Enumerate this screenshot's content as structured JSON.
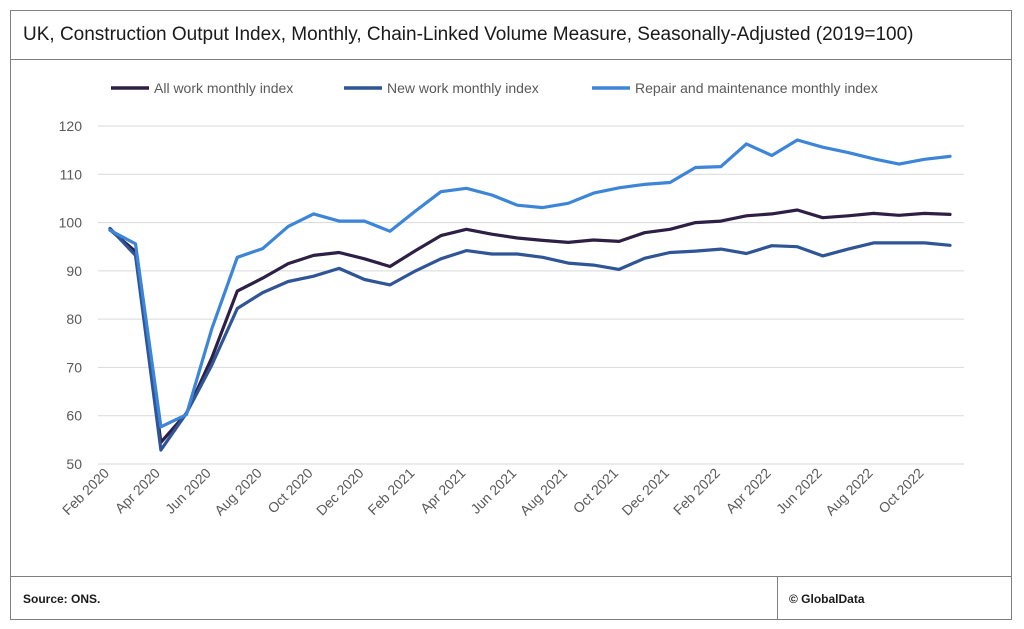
{
  "header": {
    "title": "UK, Construction Output Index, Monthly, Chain-Linked Volume Measure, Seasonally-Adjusted (2019=100)"
  },
  "footer": {
    "source": "Source: ONS.",
    "copyright": "© GlobalData"
  },
  "chart_data": {
    "type": "line",
    "title": "UK, Construction Output Index, Monthly, Chain-Linked Volume Measure, Seasonally-Adjusted (2019=100)",
    "xlabel": "",
    "ylabel": "",
    "ylim": [
      50,
      120
    ],
    "yticks": [
      50,
      60,
      70,
      80,
      90,
      100,
      110,
      120
    ],
    "grid": "horizontal",
    "legend_position": "top",
    "x": [
      "Feb 2020",
      "Mar 2020",
      "Apr 2020",
      "May 2020",
      "Jun 2020",
      "Jul 2020",
      "Aug 2020",
      "Sep 2020",
      "Oct 2020",
      "Nov 2020",
      "Dec 2020",
      "Jan 2021",
      "Feb 2021",
      "Mar 2021",
      "Apr 2021",
      "May 2021",
      "Jun 2021",
      "Jul 2021",
      "Aug 2021",
      "Sep 2021",
      "Oct 2021",
      "Nov 2021",
      "Dec 2021",
      "Jan 2022",
      "Feb 2022",
      "Mar 2022",
      "Apr 2022",
      "May 2022",
      "Jun 2022",
      "Jul 2022",
      "Aug 2022",
      "Sep 2022",
      "Oct 2022",
      "Nov 2022"
    ],
    "x_tick_labels": [
      "Feb 2020",
      "Apr 2020",
      "Jun 2020",
      "Aug 2020",
      "Oct 2020",
      "Dec 2020",
      "Feb 2021",
      "Apr 2021",
      "Jun 2021",
      "Aug 2021",
      "Oct 2021",
      "Dec 2021",
      "Feb 2022",
      "Apr 2022",
      "Jun 2022",
      "Aug 2022",
      "Oct 2022"
    ],
    "series": [
      {
        "name": "All work monthly index",
        "color": "#2e1f45",
        "values": [
          98.5,
          94.0,
          54.5,
          60.5,
          72.0,
          85.8,
          88.5,
          91.5,
          93.2,
          93.8,
          92.5,
          90.9,
          94.2,
          97.3,
          98.6,
          97.6,
          96.8,
          96.3,
          95.9,
          96.4,
          96.1,
          97.9,
          98.6,
          100.0,
          100.3,
          101.4,
          101.8,
          102.6,
          101.0,
          101.4,
          101.9,
          101.5,
          101.9,
          101.7
        ]
      },
      {
        "name": "New work monthly index",
        "color": "#2f5597",
        "values": [
          98.8,
          93.2,
          52.9,
          60.5,
          70.5,
          82.2,
          85.5,
          87.8,
          88.9,
          90.5,
          88.2,
          87.1,
          90.0,
          92.5,
          94.2,
          93.5,
          93.5,
          92.8,
          91.6,
          91.2,
          90.3,
          92.6,
          93.8,
          94.1,
          94.5,
          93.6,
          95.2,
          95.0,
          93.1,
          94.5,
          95.8,
          95.8,
          95.8,
          95.3
        ]
      },
      {
        "name": "Repair and maintenance monthly index",
        "color": "#3d85d8",
        "values": [
          98.4,
          95.6,
          57.7,
          60.2,
          78.0,
          92.8,
          94.6,
          99.2,
          101.8,
          100.3,
          100.3,
          98.2,
          102.4,
          106.4,
          107.1,
          105.7,
          103.6,
          103.1,
          104.0,
          106.1,
          107.2,
          107.9,
          108.3,
          111.4,
          111.6,
          116.3,
          113.9,
          117.1,
          115.6,
          114.5,
          113.2,
          112.1,
          113.1,
          113.7
        ]
      }
    ]
  }
}
